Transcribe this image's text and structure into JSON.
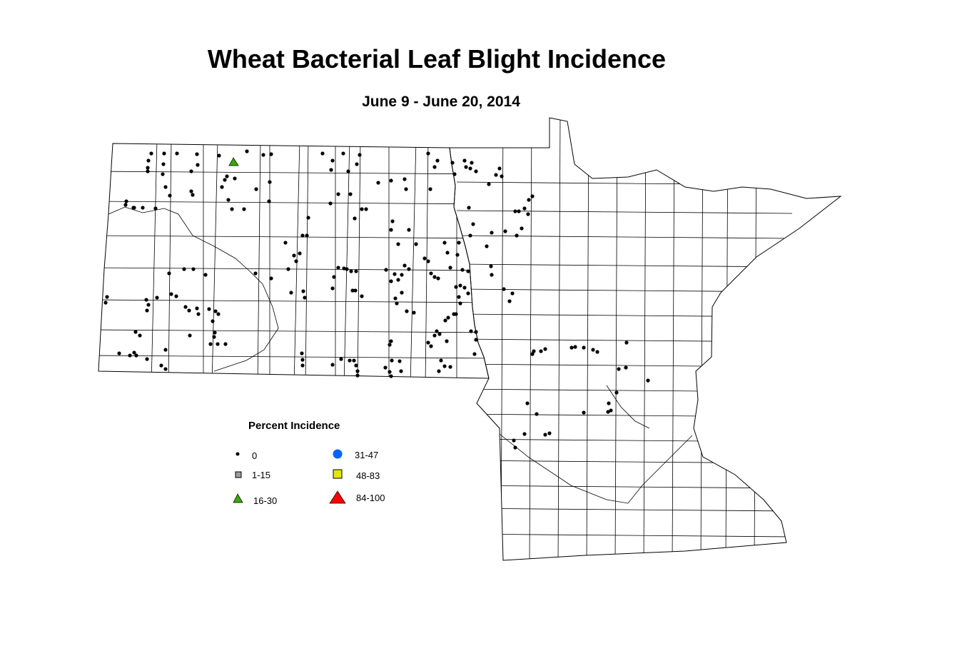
{
  "title": "Wheat Bacterial Leaf Blight Incidence",
  "subtitle": "June 9 - June 20, 2014",
  "legend": {
    "title": "Percent Incidence",
    "classes": [
      {
        "label": "0",
        "symbol": "small-dot",
        "color": "#000000"
      },
      {
        "label": "1-15",
        "symbol": "square",
        "color": "#9c9c9c"
      },
      {
        "label": "16-30",
        "symbol": "triangle",
        "color": "#38a800"
      },
      {
        "label": "31-47",
        "symbol": "circle",
        "color": "#0064ff"
      },
      {
        "label": "48-83",
        "symbol": "square",
        "color": "#e6e600"
      },
      {
        "label": "84-100",
        "symbol": "triangle",
        "color": "#ff0000"
      }
    ]
  },
  "map": {
    "region": [
      "North Dakota",
      "Minnesota"
    ],
    "site_counts": {
      "0": "majority of sites",
      "16-30": 1
    }
  }
}
